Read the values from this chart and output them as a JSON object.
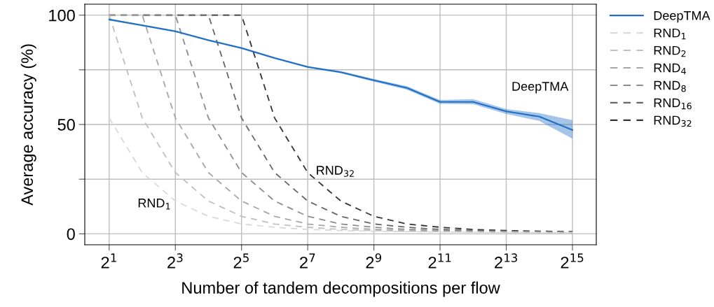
{
  "chart_data": {
    "type": "line",
    "xlabel": "Number of tandem decompositions per flow",
    "ylabel": "Average accuracy (%)",
    "log": "x",
    "x": [
      2,
      4,
      8,
      16,
      32,
      64,
      128,
      256,
      512,
      1024,
      2048,
      4096,
      8192,
      16384,
      32768
    ],
    "xlim": [
      1.2,
      54000
    ],
    "xticks": [
      {
        "value": 2,
        "label": "2$^{1}$"
      },
      {
        "value": 8,
        "label": "2$^{3}$"
      },
      {
        "value": 32,
        "label": "2$^{5}$"
      },
      {
        "value": 128,
        "label": "2$^{7}$"
      },
      {
        "value": 512,
        "label": "2$^{9}$"
      },
      {
        "value": 2048,
        "label": "2$^{11}$"
      },
      {
        "value": 8192,
        "label": "2$^{13}$"
      },
      {
        "value": 32768,
        "label": "2$^{15}$"
      }
    ],
    "ylim": [
      -5,
      105
    ],
    "yticks": [
      0,
      {
        "value": 25,
        "label": null
      },
      50,
      {
        "value": 75,
        "label": null
      },
      100
    ],
    "grid": true,
    "legend": "right",
    "series": [
      {
        "name": "DeepTMA",
        "color": "#1f6fc5",
        "line_style": "solid",
        "values": [
          98,
          95.3,
          92.6,
          88.5,
          84.9,
          80.4,
          76.3,
          73.9,
          70.2,
          66.7,
          60.3,
          60.3,
          56,
          53.6,
          47.5
        ],
        "lower": [
          97.6,
          94.9,
          92.2,
          88.1,
          84.5,
          80,
          75.9,
          73.4,
          69.6,
          65.9,
          59.4,
          59.3,
          54.8,
          51.6,
          43.5
        ],
        "upper": [
          98.4,
          95.7,
          93,
          88.9,
          85.3,
          80.8,
          76.7,
          74.4,
          70.8,
          67.5,
          61.2,
          61.6,
          57,
          55.2,
          52
        ]
      },
      {
        "name": "RND$_{1}$",
        "color": "#d9d9d9",
        "line_style": "dashed",
        "values": [
          53,
          28,
          15,
          8,
          4.5,
          3,
          2,
          1.5,
          1.2,
          1,
          0.8,
          0.7,
          0.6,
          0.5,
          0.5
        ]
      },
      {
        "name": "RND$_{2}$",
        "color": "#bfbfbf",
        "line_style": "dashed",
        "values": [
          100,
          53,
          28,
          15,
          8,
          4.5,
          3,
          2,
          1.5,
          1.2,
          1,
          0.8,
          0.7,
          0.6,
          0.5
        ]
      },
      {
        "name": "RND$_{4}$",
        "color": "#a6a6a6",
        "line_style": "dashed",
        "values": [
          100,
          100,
          53,
          28,
          15,
          8,
          4.5,
          3,
          2,
          1.5,
          1.2,
          1,
          0.8,
          0.7,
          0.6
        ]
      },
      {
        "name": "RND$_{8}$",
        "color": "#8c8c8c",
        "line_style": "dashed",
        "values": [
          100,
          100,
          100,
          53,
          28,
          15,
          8,
          4.5,
          3,
          2,
          1.5,
          1.2,
          1,
          0.8,
          0.7
        ]
      },
      {
        "name": "RND$_{16}$",
        "color": "#666666",
        "line_style": "dashed",
        "values": [
          100,
          100,
          100,
          100,
          53,
          28,
          15,
          8,
          4.5,
          3,
          2,
          1.5,
          1.2,
          1,
          0.8
        ]
      },
      {
        "name": "RND$_{32}$",
        "color": "#333333",
        "line_style": "dashed",
        "values": [
          100,
          100,
          100,
          100,
          100,
          53,
          28,
          15,
          8,
          4.5,
          3,
          2,
          1.5,
          1.2,
          1
        ]
      }
    ],
    "annotations": [
      "RND$_{1}$",
      "RND$_{32}$",
      "DeepTMA"
    ]
  }
}
